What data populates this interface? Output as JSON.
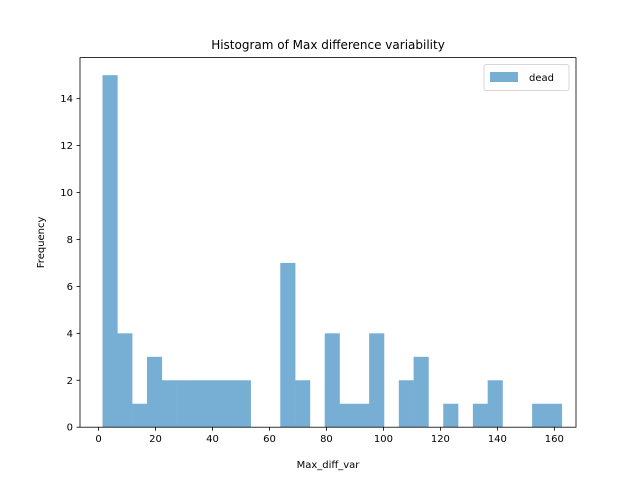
{
  "chart_data": {
    "type": "bar",
    "title": "Histogram of Max difference variability",
    "xlabel": "Max_diff_var",
    "ylabel": "Frequency",
    "xlim": [
      -6.5,
      167.6
    ],
    "ylim": [
      0,
      15.75
    ],
    "xticks": [
      0,
      20,
      40,
      60,
      80,
      100,
      120,
      140,
      160
    ],
    "yticks": [
      0,
      2,
      4,
      6,
      8,
      10,
      12,
      14
    ],
    "grid": false,
    "legend": {
      "position": "top-right"
    },
    "color": "#77AED3",
    "series": [
      {
        "name": "dead",
        "bin_start": 1.4,
        "bin_width": 5.2,
        "values": [
          15,
          4,
          1,
          3,
          2,
          2,
          2,
          2,
          2,
          2,
          0,
          0,
          7,
          2,
          0,
          4,
          1,
          1,
          4,
          0,
          2,
          3,
          0,
          1,
          0,
          1,
          2,
          0,
          0,
          1,
          1
        ]
      }
    ]
  }
}
